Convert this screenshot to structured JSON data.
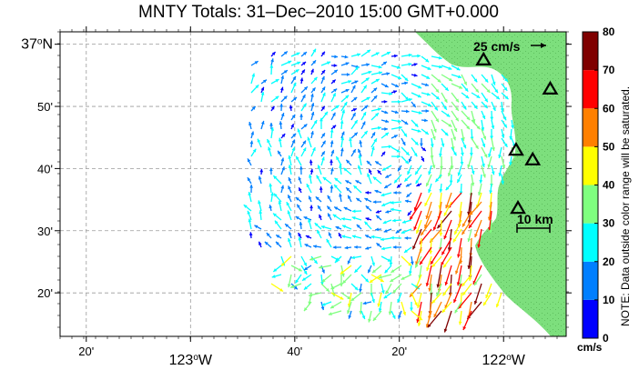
{
  "title": "MNTY Totals: 31–Dec–2010 15:00 GMT+0.000",
  "lon_labels": [
    {
      "lon": -123.333,
      "text": "20'",
      "big": false
    },
    {
      "lon": -123.0,
      "text": "123",
      "big": true
    },
    {
      "lon": -122.667,
      "text": "40'",
      "big": false
    },
    {
      "lon": -122.333,
      "text": "20'",
      "big": false
    },
    {
      "lon": -122.0,
      "text": "122",
      "big": true
    }
  ],
  "lat_labels": [
    {
      "lat": 37.0,
      "text": "37",
      "big": true
    },
    {
      "lat": 36.8333,
      "text": "50'",
      "big": false
    },
    {
      "lat": 36.6667,
      "text": "40'",
      "big": false
    },
    {
      "lat": 36.5,
      "text": "30'",
      "big": false
    },
    {
      "lat": 36.3333,
      "text": "20'",
      "big": false
    }
  ],
  "degree_symbol": "o",
  "west_suffix": "W",
  "north_suffix": "N",
  "map": {
    "lon_range": [
      -123.4167,
      -121.8
    ],
    "lat_range": [
      36.2167,
      37.0333
    ],
    "colors": {
      "land": "#7ddf7d",
      "water": "#ffffff",
      "grid": "#9a9a9a"
    }
  },
  "reference_vector": {
    "label": "25 cm/s",
    "speed_cms": 25
  },
  "scale_bar": {
    "label": "10 km",
    "km": 10
  },
  "stations": [
    {
      "lon": -122.064,
      "lat": 36.958
    },
    {
      "lon": -121.851,
      "lat": 36.88
    },
    {
      "lon": -121.96,
      "lat": 36.716
    },
    {
      "lon": -121.907,
      "lat": 36.69
    },
    {
      "lon": -121.954,
      "lat": 36.56
    }
  ],
  "colorbar": {
    "min": 0,
    "max": 80,
    "ticks": [
      "0",
      "10",
      "20",
      "30",
      "40",
      "50",
      "60",
      "70",
      "80"
    ],
    "colors": [
      "#0000ff",
      "#007fff",
      "#00ffff",
      "#7fff7f",
      "#ffff00",
      "#ff8000",
      "#ff0000",
      "#7f0000"
    ],
    "unit": "cm/s",
    "note": "NOTE: Data outside color range will be saturated."
  }
}
